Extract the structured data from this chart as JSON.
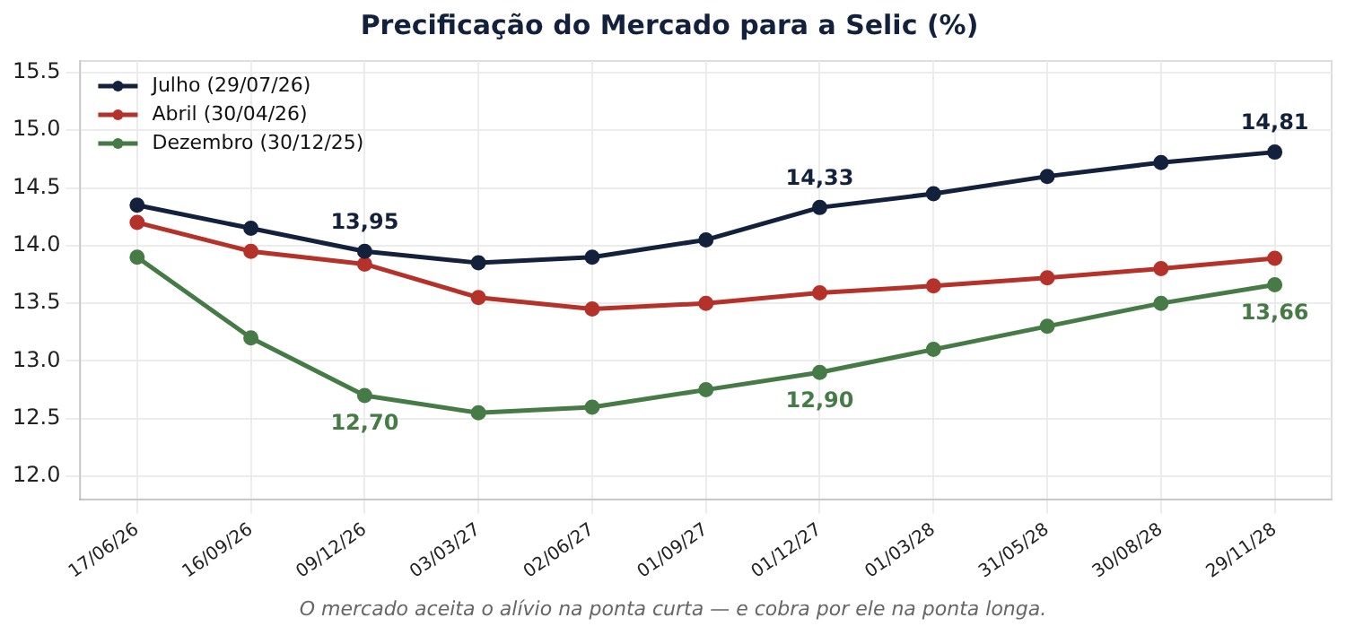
{
  "chart_data": {
    "type": "line",
    "title": "Precificação do Mercado para a Selic (%)",
    "categories": [
      "17/06/26",
      "16/09/26",
      "09/12/26",
      "03/03/27",
      "02/06/27",
      "01/09/27",
      "01/12/27",
      "01/03/28",
      "31/05/28",
      "30/08/28",
      "29/11/28"
    ],
    "series": [
      {
        "name": "Julho (29/07/26)",
        "color": "#14213d",
        "values": [
          14.35,
          14.15,
          13.95,
          13.85,
          13.9,
          14.05,
          14.33,
          14.45,
          14.6,
          14.72,
          14.81
        ]
      },
      {
        "name": "Abril (30/04/26)",
        "color": "#b5322a",
        "values": [
          14.2,
          13.95,
          13.84,
          13.55,
          13.45,
          13.5,
          13.59,
          13.65,
          13.72,
          13.8,
          13.89
        ]
      },
      {
        "name": "Dezembro (30/12/25)",
        "color": "#467a46",
        "values": [
          13.9,
          13.2,
          12.7,
          12.55,
          12.6,
          12.75,
          12.9,
          13.1,
          13.3,
          13.5,
          13.66
        ]
      }
    ],
    "ylim": [
      11.8,
      15.6
    ],
    "yticks": [
      {
        "value": 12,
        "label": "12.0"
      },
      12.5,
      {
        "value": 13,
        "label": "13.0"
      },
      13.5,
      {
        "value": 14,
        "label": "14.0"
      },
      14.5,
      {
        "value": 15,
        "label": "15.0"
      },
      15.5
    ],
    "grid": true,
    "legend": "top left",
    "marker": "circle",
    "line_style": "solid",
    "annotations": [
      {
        "text": "13,95",
        "x": "09/12/26",
        "y": 13.95
      },
      {
        "text": "14,33",
        "x": "01/12/27",
        "y": 14.33
      },
      {
        "text": "14,81",
        "x": "29/11/28",
        "y": 14.81
      },
      {
        "text": "12,70",
        "x": "09/12/26",
        "y": 12.7
      },
      {
        "text": "12,90",
        "x": "01/12/27",
        "y": 12.9
      },
      {
        "text": "13,66",
        "x": "29/11/28",
        "y": 13.66
      },
      "O mercado aceita o alívio na ponta curta — e cobra por ele na ponta longa."
    ]
  }
}
